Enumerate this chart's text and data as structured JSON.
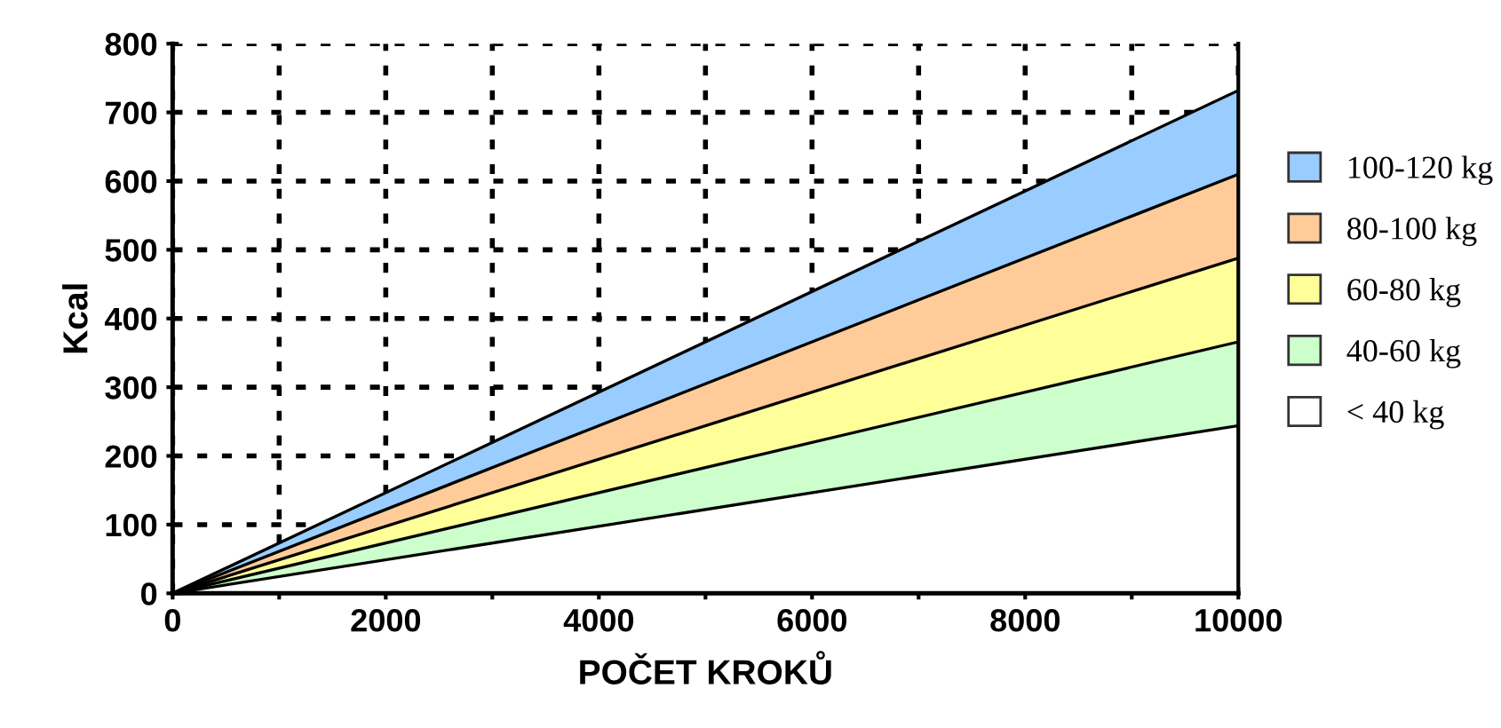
{
  "chart_data": {
    "type": "area",
    "stacked": true,
    "xlabel": "POČET KROKŮ",
    "ylabel": "Kcal",
    "x": [
      0,
      10000
    ],
    "series": [
      {
        "name": "< 40 kg",
        "color": "#ffffff",
        "values": [
          0,
          244
        ]
      },
      {
        "name": "40-60 kg",
        "color": "#ccffcc",
        "values": [
          0,
          122
        ]
      },
      {
        "name": "60-80 kg",
        "color": "#ffff99",
        "values": [
          0,
          122
        ]
      },
      {
        "name": "80-100 kg",
        "color": "#ffcc99",
        "values": [
          0,
          122
        ]
      },
      {
        "name": "100-120 kg",
        "color": "#99ccff",
        "values": [
          0,
          122
        ]
      }
    ],
    "xlim": [
      0,
      10000
    ],
    "ylim": [
      0,
      800
    ],
    "xticks": [
      0,
      {
        "value": 1000,
        "label": null
      },
      2000,
      {
        "value": 3000,
        "label": null
      },
      4000,
      {
        "value": 5000,
        "label": null
      },
      6000,
      {
        "value": 7000,
        "label": null
      },
      8000,
      {
        "value": 9000,
        "label": null
      },
      10000
    ],
    "yticks": [
      0,
      100,
      200,
      300,
      400,
      500,
      600,
      700,
      800
    ],
    "grid": true,
    "legend": "right"
  }
}
